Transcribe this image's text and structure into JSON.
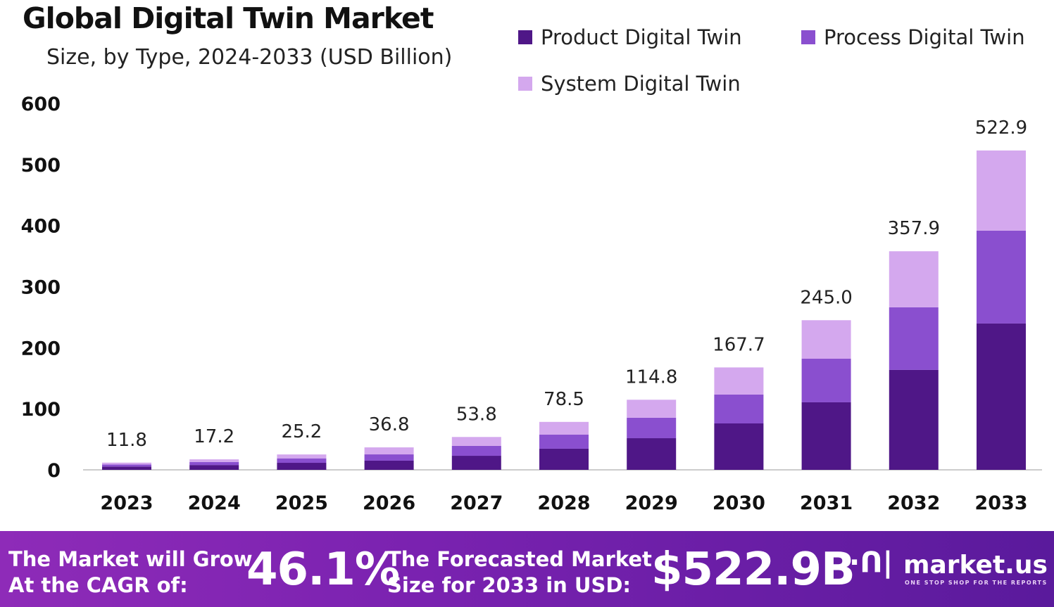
{
  "chart_data": {
    "type": "bar",
    "stacked": true,
    "title": "Global Digital Twin Market",
    "subtitle": "Size, by Type, 2024-2033 (USD Billion)",
    "categories": [
      "2023",
      "2024",
      "2025",
      "2026",
      "2027",
      "2028",
      "2029",
      "2030",
      "2031",
      "2032",
      "2033"
    ],
    "totals": [
      11.8,
      17.2,
      25.2,
      36.8,
      53.8,
      78.5,
      114.8,
      167.7,
      245.0,
      357.9,
      522.9
    ],
    "total_labels": [
      "11.8",
      "17.2",
      "25.2",
      "36.8",
      "53.8",
      "78.5",
      "114.8",
      "167.7",
      "245.0",
      "357.9",
      "522.9"
    ],
    "series": [
      {
        "name": "Product Digital Twin",
        "color": "#4f1787",
        "values": [
          5.4,
          7.9,
          11.5,
          15.0,
          23.0,
          34.6,
          51.8,
          76.0,
          110.6,
          163.6,
          239.6
        ]
      },
      {
        "name": "Process Digital Twin",
        "color": "#8a4fcf",
        "values": [
          3.4,
          5.0,
          7.3,
          10.3,
          16.2,
          23.0,
          33.5,
          47.3,
          71.4,
          102.5,
          152.1
        ]
      },
      {
        "name": "System Digital Twin",
        "color": "#d4a8ee",
        "values": [
          3.0,
          4.3,
          6.4,
          11.5,
          14.6,
          20.9,
          29.5,
          44.4,
          63.0,
          91.8,
          131.2
        ]
      }
    ],
    "ylim": [
      0,
      600
    ],
    "yticks": [
      "0",
      "100",
      "200",
      "300",
      "400",
      "500",
      "600"
    ],
    "grid": false,
    "legend": "top-right"
  },
  "banner": {
    "cagr_text_1": "The Market will Grow",
    "cagr_text_2": "At the CAGR of:",
    "cagr_value": "46.1%",
    "forecast_text_1": "The Forecasted Market",
    "forecast_text_2": "Size for 2033 in USD:",
    "forecast_value": "$522.9B",
    "logo_text": "market.us",
    "logo_tagline": "ONE STOP SHOP FOR THE REPORTS"
  }
}
